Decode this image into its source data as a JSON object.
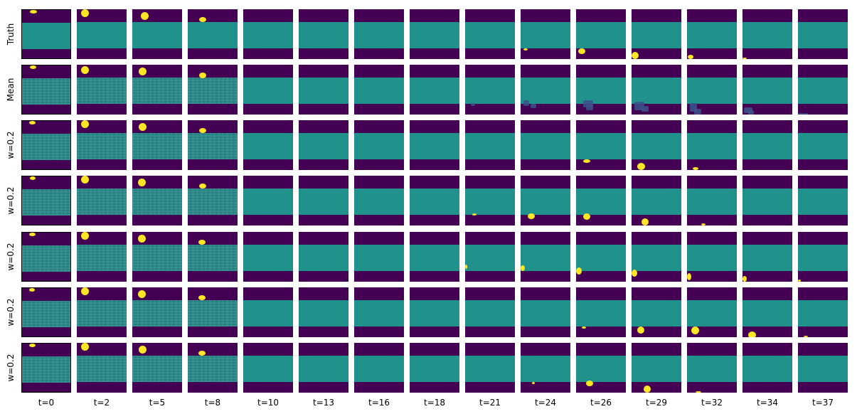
{
  "row_labels": [
    "Truth",
    "Mean",
    "w=0.2",
    "w=0.2",
    "w=0.2",
    "w=0.2",
    "w=0.2"
  ],
  "col_labels": [
    "t=0",
    "t=2",
    "t=5",
    "t=8",
    "t=10",
    "t=13",
    "t=16",
    "t=18",
    "t=21",
    "t=24",
    "t=26",
    "t=29",
    "t=32",
    "t=34",
    "t=37"
  ],
  "colors": {
    "background": "#440154",
    "band": "#21918c",
    "ball": "#fde725",
    "smear": "#3b528b"
  }
}
